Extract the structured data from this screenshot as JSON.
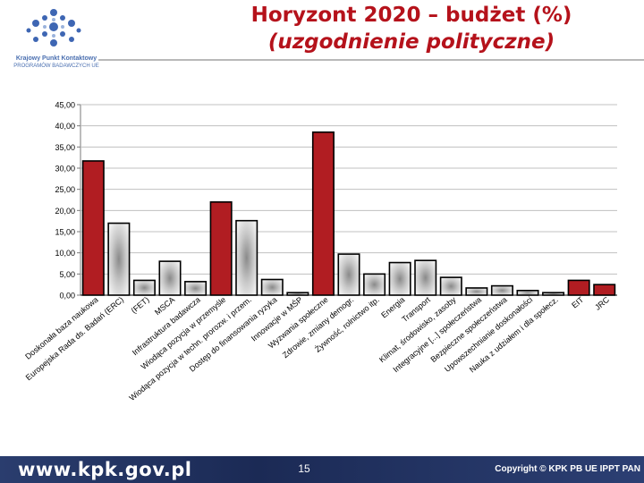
{
  "header": {
    "title_line1": "Horyzont 2020 – budżet (%)",
    "title_line2": "(uzgodnienie polityczne)"
  },
  "logo": {
    "icon": "network-dots-logo",
    "line1": "Krajowy Punkt Kontaktowy",
    "line2": "PROGRAMÓW BADAWCZYCH UE"
  },
  "footer": {
    "url": "www.kpk.gov.pl",
    "page_number": "15",
    "copyright": "Copyright © KPK PB UE IPPT PAN"
  },
  "colors": {
    "red_bar": "#b11d22",
    "gray_bar": "#d6d6d6",
    "title": "#b5121b",
    "footer_bg": "#1f2f5c"
  },
  "chart_data": {
    "type": "bar",
    "ylim": [
      0,
      45
    ],
    "yticks": [
      "0,00",
      "5,00",
      "10,00",
      "15,00",
      "20,00",
      "25,00",
      "30,00",
      "35,00",
      "40,00",
      "45,00"
    ],
    "grid": true,
    "categories": [
      "Doskonała baza naukowa",
      "Europejska Rada ds. Badań (ERC)",
      "(FET)",
      "MSCA",
      "Infrastruktura badawcza",
      "Wiodąca pozycja w przemyśle",
      "Wiodąca pozycja w techn. prorozw. i przem.",
      "Dostęp do finansowania ryzyka",
      "Innowacje w MŚP",
      "Wyzwania społeczne",
      "Zdrowie, zmiany demogr.",
      "Żywność, rolnictwo itp.",
      "Energia",
      "Transport",
      "Klimat, środowisko, zasoby",
      "Integracyjne [...] społeczeństwa",
      "Bezpieczne społeczeństwa",
      "Upowszechnianie doskonałości",
      "Nauka z udziałem i dla społecz.",
      "EIT",
      "JRC"
    ],
    "values": [
      31.7,
      17.0,
      3.5,
      8.0,
      3.2,
      22.0,
      17.6,
      3.7,
      0.6,
      38.5,
      9.7,
      5.0,
      7.7,
      8.2,
      4.2,
      1.7,
      2.2,
      1.1,
      0.6,
      3.5,
      2.5
    ],
    "highlighted": [
      true,
      false,
      false,
      false,
      false,
      true,
      false,
      false,
      false,
      true,
      false,
      false,
      false,
      false,
      false,
      false,
      false,
      false,
      false,
      true,
      true
    ]
  }
}
